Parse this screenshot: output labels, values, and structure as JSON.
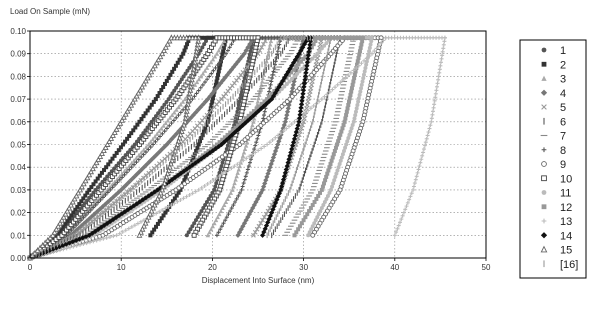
{
  "chart_data": {
    "type": "scatter",
    "title": "",
    "ylabel": "Load On Sample (mN)",
    "xlabel": "Displacement Into Surface (nm)",
    "xlim": [
      0,
      50
    ],
    "ylim": [
      0,
      0.1
    ],
    "x_ticks": [
      "0",
      "10",
      "20",
      "30",
      "40",
      "50"
    ],
    "y_ticks": [
      "0.00",
      "0.01",
      "0.02",
      "0.03",
      "0.04",
      "0.05",
      "0.06",
      "0.07",
      "0.08",
      "0.09",
      "0.10"
    ],
    "grid": true,
    "legend_position": "right",
    "colors": {
      "marker_dark": "#111111",
      "marker_mid": "#666666",
      "marker_light": "#aaaaaa",
      "grid": "#888888",
      "axis": "#000000"
    },
    "series": [
      {
        "name": "1",
        "marker": "circle",
        "color": "#555555",
        "loading": [
          [
            0.0,
            0.0
          ],
          [
            3.2,
            0.01
          ],
          [
            7.2,
            0.03
          ],
          [
            11.5,
            0.05
          ],
          [
            15.2,
            0.07
          ],
          [
            18.5,
            0.09
          ],
          [
            19.5,
            0.097
          ]
        ],
        "unloading": [
          [
            24.5,
            0.097
          ],
          [
            22.5,
            0.06
          ],
          [
            20.2,
            0.03
          ],
          [
            17.2,
            0.01
          ]
        ]
      },
      {
        "name": "2",
        "marker": "square",
        "color": "#333333",
        "loading": [
          [
            0.0,
            0.0
          ],
          [
            3.0,
            0.01
          ],
          [
            6.5,
            0.03
          ],
          [
            10.2,
            0.05
          ],
          [
            13.8,
            0.07
          ],
          [
            16.8,
            0.09
          ],
          [
            17.5,
            0.097
          ]
        ],
        "unloading": [
          [
            21.5,
            0.097
          ],
          [
            19.5,
            0.06
          ],
          [
            16.5,
            0.03
          ],
          [
            13.2,
            0.01
          ]
        ]
      },
      {
        "name": "3",
        "marker": "triangle",
        "color": "#aaaaaa",
        "loading": [
          [
            0.0,
            0.0
          ],
          [
            3.8,
            0.01
          ],
          [
            8.5,
            0.03
          ],
          [
            13.0,
            0.05
          ],
          [
            17.0,
            0.07
          ],
          [
            20.5,
            0.09
          ],
          [
            21.5,
            0.097
          ]
        ],
        "unloading": [
          [
            26.5,
            0.097
          ],
          [
            24.5,
            0.06
          ],
          [
            22.2,
            0.03
          ],
          [
            19.5,
            0.01
          ]
        ]
      },
      {
        "name": "4",
        "marker": "diamond",
        "color": "#777777",
        "loading": [
          [
            0.0,
            0.0
          ],
          [
            4.5,
            0.01
          ],
          [
            10.0,
            0.03
          ],
          [
            15.0,
            0.05
          ],
          [
            19.5,
            0.07
          ],
          [
            23.5,
            0.09
          ],
          [
            24.5,
            0.097
          ]
        ],
        "unloading": [
          [
            30.0,
            0.097
          ],
          [
            28.0,
            0.06
          ],
          [
            25.5,
            0.03
          ],
          [
            22.8,
            0.01
          ]
        ]
      },
      {
        "name": "5",
        "marker": "cross",
        "color": "#999999",
        "loading": [
          [
            0.0,
            0.0
          ],
          [
            5.0,
            0.01
          ],
          [
            11.0,
            0.03
          ],
          [
            16.5,
            0.05
          ],
          [
            21.0,
            0.07
          ],
          [
            25.0,
            0.09
          ],
          [
            26.0,
            0.097
          ]
        ],
        "unloading": [
          [
            32.0,
            0.097
          ],
          [
            30.0,
            0.06
          ],
          [
            27.5,
            0.03
          ],
          [
            24.5,
            0.01
          ]
        ]
      },
      {
        "name": "6",
        "marker": "vbar",
        "color": "#555555",
        "loading": [
          [
            0.0,
            0.0
          ],
          [
            5.5,
            0.01
          ],
          [
            12.0,
            0.03
          ],
          [
            18.0,
            0.05
          ],
          [
            23.0,
            0.07
          ],
          [
            27.5,
            0.09
          ],
          [
            28.5,
            0.097
          ]
        ],
        "unloading": [
          [
            34.0,
            0.097
          ],
          [
            32.0,
            0.06
          ],
          [
            29.5,
            0.03
          ],
          [
            26.5,
            0.01
          ]
        ]
      },
      {
        "name": "7",
        "marker": "hbar",
        "color": "#888888",
        "loading": [
          [
            0.0,
            0.0
          ],
          [
            6.0,
            0.01
          ],
          [
            13.0,
            0.03
          ],
          [
            19.5,
            0.05
          ],
          [
            24.5,
            0.07
          ],
          [
            28.5,
            0.09
          ],
          [
            29.5,
            0.097
          ]
        ],
        "unloading": [
          [
            35.5,
            0.097
          ],
          [
            33.5,
            0.06
          ],
          [
            31.0,
            0.03
          ],
          [
            28.0,
            0.01
          ]
        ]
      },
      {
        "name": "8",
        "marker": "plus",
        "color": "#555555",
        "loading": [
          [
            0.0,
            0.0
          ],
          [
            4.0,
            0.01
          ],
          [
            8.8,
            0.03
          ],
          [
            13.5,
            0.05
          ],
          [
            17.8,
            0.07
          ],
          [
            21.5,
            0.09
          ],
          [
            22.5,
            0.097
          ]
        ],
        "unloading": [
          [
            27.5,
            0.097
          ],
          [
            25.5,
            0.06
          ],
          [
            23.2,
            0.03
          ],
          [
            20.5,
            0.01
          ]
        ]
      },
      {
        "name": "9",
        "marker": "circle-open",
        "color": "#666666",
        "loading": [
          [
            0.0,
            0.0
          ],
          [
            8.0,
            0.01
          ],
          [
            16.0,
            0.03
          ],
          [
            23.0,
            0.05
          ],
          [
            28.5,
            0.07
          ],
          [
            33.0,
            0.09
          ],
          [
            34.5,
            0.097
          ]
        ],
        "unloading": [
          [
            38.5,
            0.097
          ],
          [
            36.5,
            0.06
          ],
          [
            34.0,
            0.03
          ],
          [
            31.0,
            0.01
          ]
        ]
      },
      {
        "name": "10",
        "marker": "square-open",
        "color": "#444444",
        "loading": [
          [
            0.0,
            0.0
          ],
          [
            3.5,
            0.01
          ],
          [
            7.8,
            0.03
          ],
          [
            12.0,
            0.05
          ],
          [
            16.0,
            0.07
          ],
          [
            19.5,
            0.09
          ],
          [
            20.5,
            0.097
          ]
        ],
        "unloading": [
          [
            25.0,
            0.097
          ],
          [
            23.0,
            0.06
          ],
          [
            20.8,
            0.03
          ],
          [
            18.0,
            0.01
          ]
        ]
      },
      {
        "name": "11",
        "marker": "circle",
        "color": "#bbbbbb",
        "loading": [
          [
            0.0,
            0.0
          ],
          [
            7.0,
            0.01
          ],
          [
            14.5,
            0.03
          ],
          [
            21.0,
            0.05
          ],
          [
            26.5,
            0.07
          ],
          [
            31.5,
            0.09
          ],
          [
            33.0,
            0.097
          ]
        ],
        "unloading": [
          [
            37.5,
            0.097
          ],
          [
            35.5,
            0.06
          ],
          [
            33.0,
            0.03
          ],
          [
            30.5,
            0.01
          ]
        ]
      },
      {
        "name": "12",
        "marker": "square",
        "color": "#999999",
        "loading": [
          [
            0.0,
            0.0
          ],
          [
            6.5,
            0.01
          ],
          [
            14.0,
            0.03
          ],
          [
            20.5,
            0.05
          ],
          [
            26.0,
            0.07
          ],
          [
            30.5,
            0.09
          ],
          [
            31.5,
            0.097
          ]
        ],
        "unloading": [
          [
            36.5,
            0.097
          ],
          [
            34.5,
            0.06
          ],
          [
            32.0,
            0.03
          ],
          [
            29.0,
            0.01
          ]
        ]
      },
      {
        "name": "13",
        "marker": "plus",
        "color": "#bbbbbb",
        "loading": [
          [
            0.0,
            0.0
          ],
          [
            9.5,
            0.01
          ],
          [
            18.5,
            0.03
          ],
          [
            26.0,
            0.05
          ],
          [
            32.0,
            0.07
          ],
          [
            37.5,
            0.09
          ],
          [
            39.0,
            0.097
          ]
        ],
        "unloading": [
          [
            45.5,
            0.097
          ],
          [
            44.0,
            0.06
          ],
          [
            42.0,
            0.03
          ],
          [
            40.0,
            0.01
          ]
        ]
      },
      {
        "name": "14",
        "marker": "diamond",
        "color": "#111111",
        "loading": [
          [
            0.0,
            0.0
          ],
          [
            6.5,
            0.01
          ],
          [
            14.0,
            0.03
          ],
          [
            21.0,
            0.05
          ],
          [
            26.5,
            0.07
          ],
          [
            29.5,
            0.09
          ],
          [
            30.5,
            0.097
          ]
        ],
        "unloading": [
          [
            30.8,
            0.097
          ],
          [
            29.5,
            0.06
          ],
          [
            27.5,
            0.03
          ],
          [
            25.5,
            0.01
          ]
        ]
      },
      {
        "name": "15",
        "marker": "triangle-open",
        "color": "#666666",
        "loading": [
          [
            0.0,
            0.0
          ],
          [
            2.5,
            0.01
          ],
          [
            5.5,
            0.03
          ],
          [
            8.5,
            0.05
          ],
          [
            11.5,
            0.07
          ],
          [
            14.5,
            0.09
          ],
          [
            15.5,
            0.097
          ]
        ],
        "unloading": [
          [
            18.5,
            0.097
          ],
          [
            17.0,
            0.06
          ],
          [
            14.5,
            0.03
          ],
          [
            12.0,
            0.01
          ]
        ]
      },
      {
        "name": "[16]",
        "marker": "vbar",
        "color": "#999999",
        "loading": [
          [
            0.0,
            0.0
          ],
          [
            5.0,
            0.01
          ],
          [
            11.0,
            0.03
          ],
          [
            17.0,
            0.05
          ],
          [
            22.0,
            0.07
          ],
          [
            26.5,
            0.09
          ],
          [
            27.5,
            0.097
          ]
        ],
        "unloading": [
          [
            33.0,
            0.097
          ],
          [
            31.0,
            0.06
          ],
          [
            28.5,
            0.03
          ],
          [
            26.0,
            0.01
          ]
        ]
      }
    ]
  }
}
